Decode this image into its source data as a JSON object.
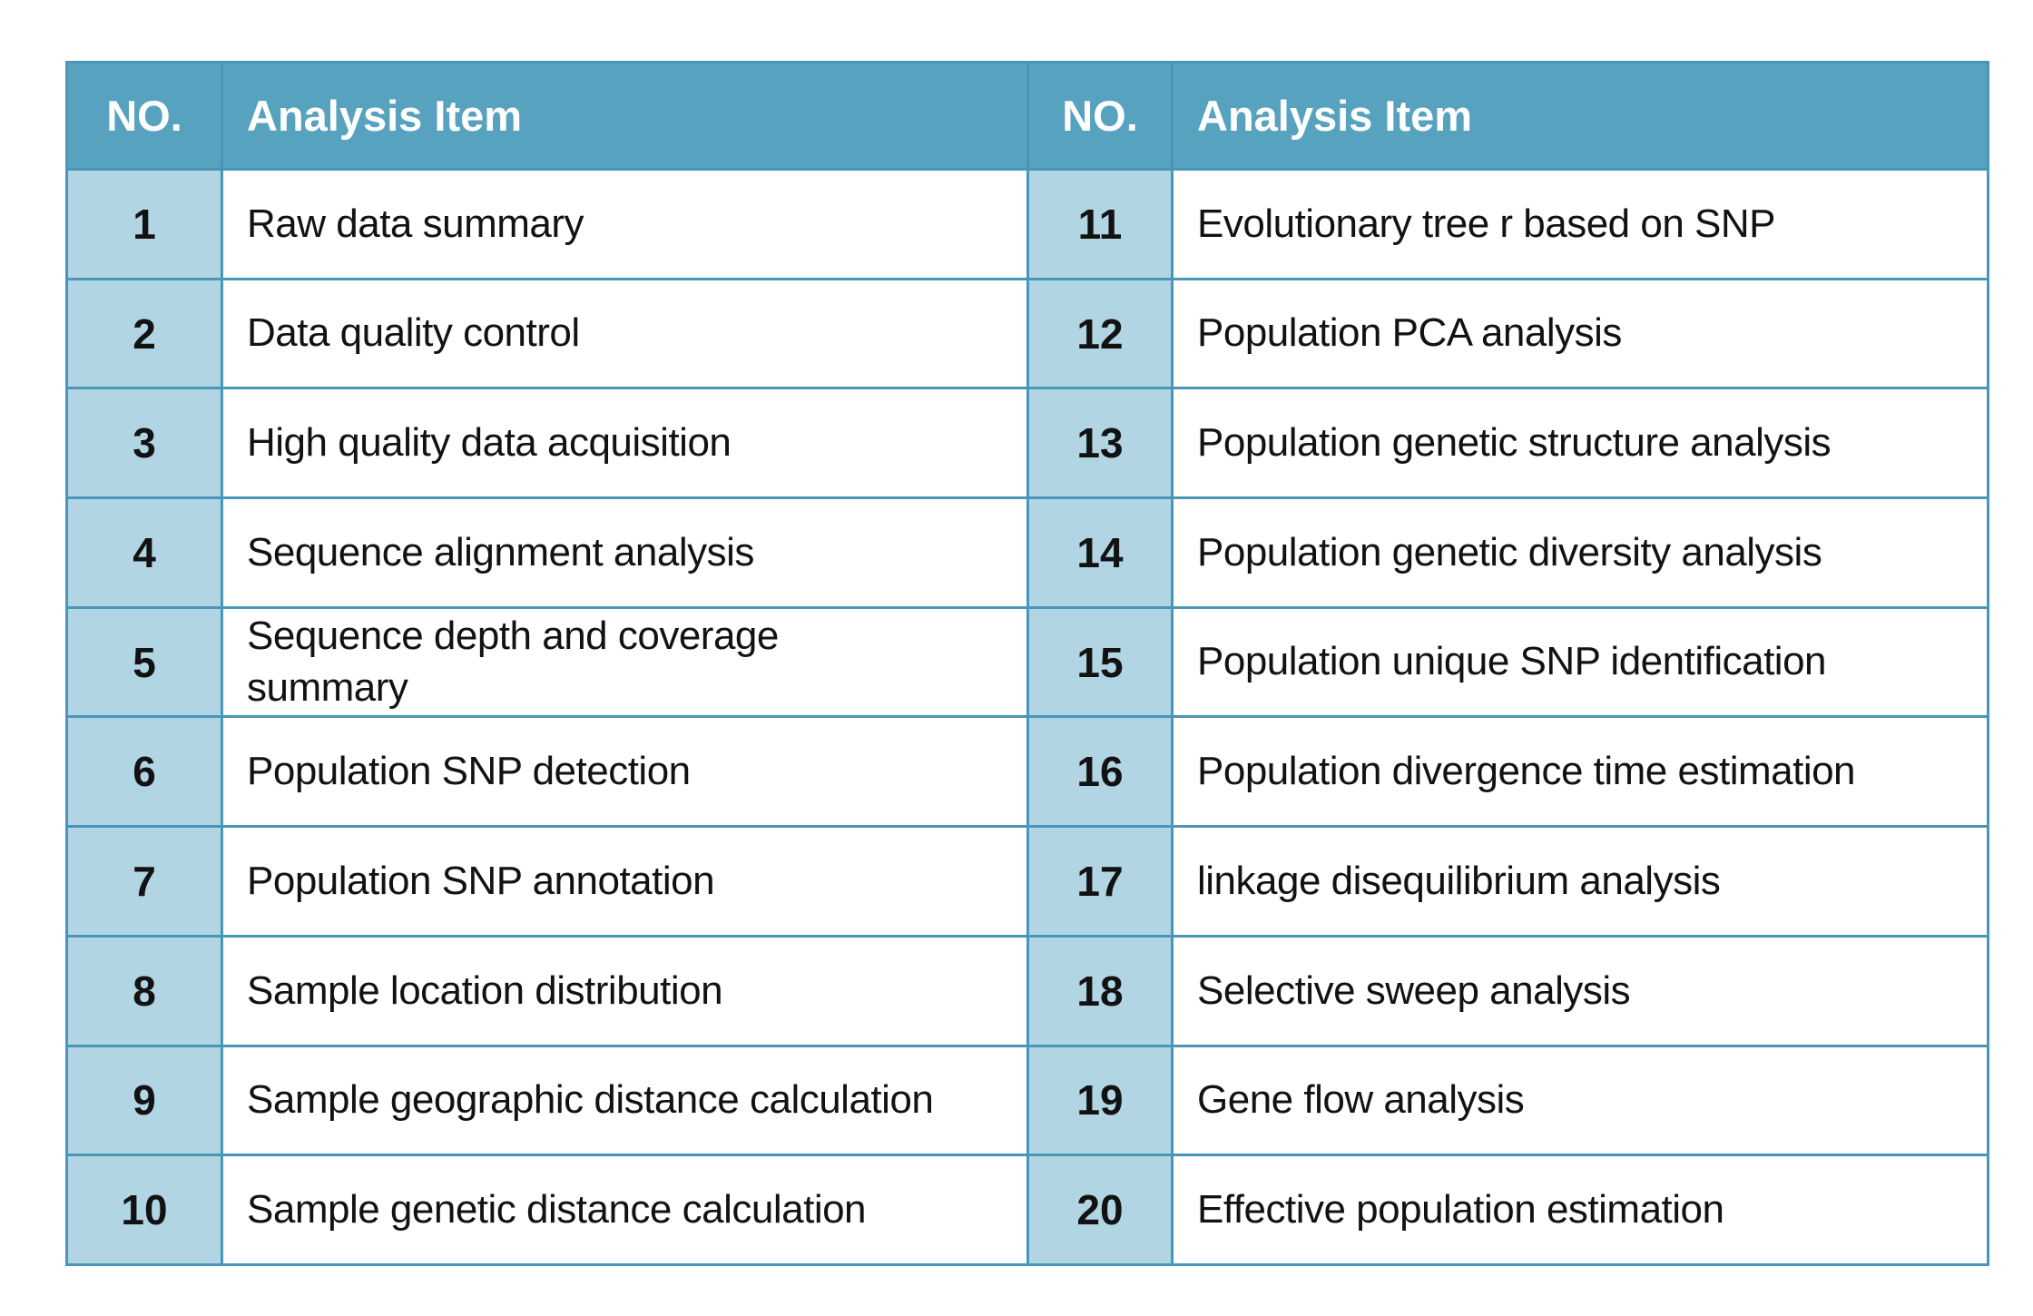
{
  "table": {
    "headers": {
      "no_left": "NO.",
      "item_left": "Analysis Item",
      "no_right": "NO.",
      "item_right": "Analysis Item"
    },
    "rows": [
      {
        "no_left": "1",
        "item_left": "Raw data summary",
        "no_right": "11",
        "item_right": "Evolutionary tree r based on SNP"
      },
      {
        "no_left": "2",
        "item_left": "Data quality control",
        "no_right": "12",
        "item_right": "Population PCA analysis"
      },
      {
        "no_left": "3",
        "item_left": "High quality data acquisition",
        "no_right": "13",
        "item_right": "Population genetic structure analysis"
      },
      {
        "no_left": "4",
        "item_left": "Sequence alignment analysis",
        "no_right": "14",
        "item_right": "Population genetic diversity analysis"
      },
      {
        "no_left": "5",
        "item_left": "Sequence depth and coverage\nsummary",
        "no_right": "15",
        "item_right": "Population unique SNP identification"
      },
      {
        "no_left": "6",
        "item_left": "Population SNP detection",
        "no_right": "16",
        "item_right": "Population divergence time estimation"
      },
      {
        "no_left": "7",
        "item_left": "Population SNP annotation",
        "no_right": "17",
        "item_right": "linkage disequilibrium analysis"
      },
      {
        "no_left": "8",
        "item_left": "Sample location distribution",
        "no_right": "18",
        "item_right": "Selective sweep analysis"
      },
      {
        "no_left": "9",
        "item_left": "Sample geographic distance calculation",
        "no_right": "19",
        "item_right": "Gene flow analysis"
      },
      {
        "no_left": "10",
        "item_left": "Sample genetic distance calculation",
        "no_right": "20",
        "item_right": "Effective population estimation"
      }
    ],
    "colors": {
      "header_bg": "#57a2bf",
      "number_bg": "#b2d5e4",
      "border": "#4896b8",
      "text": "#121212",
      "header_text": "#ffffff"
    }
  }
}
